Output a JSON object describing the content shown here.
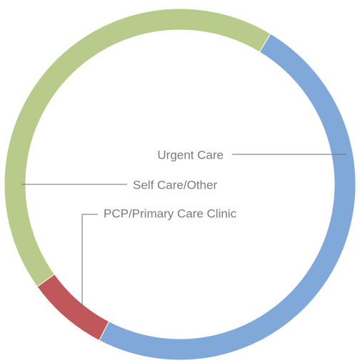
{
  "chart_data": {
    "type": "donut",
    "categories": [
      "Urgent Care",
      "PCP/Primary Care Clinic",
      "Self Care/Other"
    ],
    "values": [
      49,
      7.5,
      43.5
    ],
    "colors": [
      "#80a9da",
      "#c0585b",
      "#b8cb8a"
    ]
  }
}
